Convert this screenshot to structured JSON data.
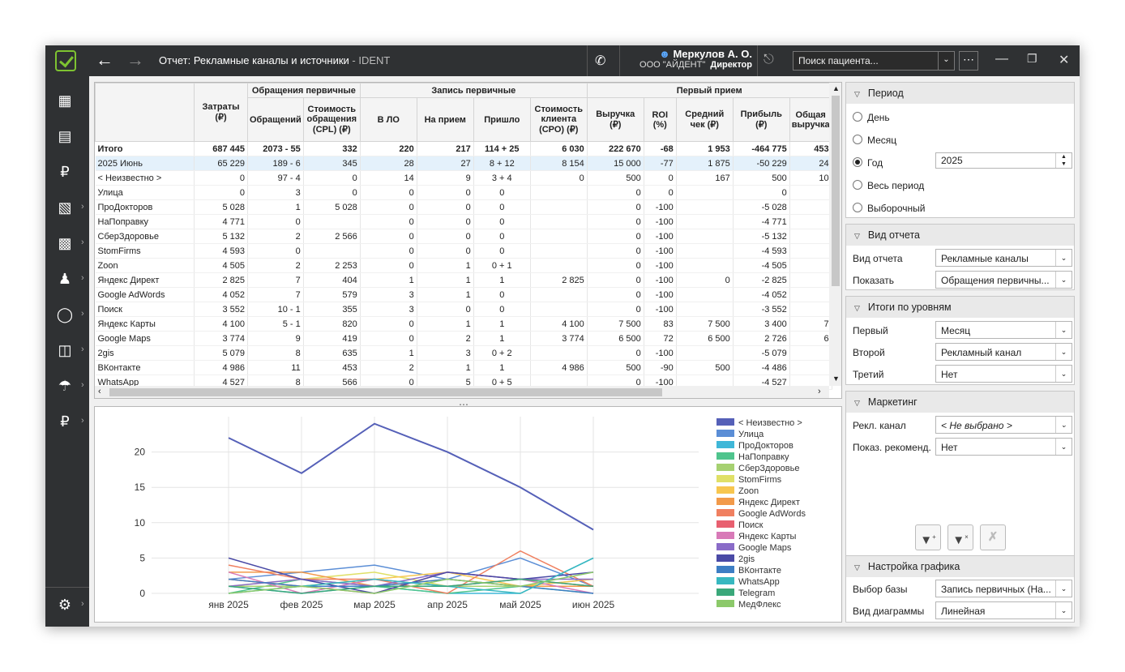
{
  "window": {
    "title": "Отчет: Рекламные каналы и источники",
    "title_suffix": " - IDENT",
    "user_name": "Меркулов А. О.",
    "org": "ООО \"АЙДЕНТ\"",
    "role": "Директор",
    "search_placeholder": "Поиск пациента...",
    "icons": [
      "app-logo-icon",
      "back-arrow-icon",
      "forward-arrow-icon",
      "phone-icon",
      "user-icon",
      "logout-icon",
      "more-icon",
      "minimize-icon",
      "restore-icon",
      "close-icon"
    ]
  },
  "sidebar": {
    "icons": [
      "calendar-icon",
      "schedule-icon",
      "ruble-icon",
      "building-icon",
      "chart-icon",
      "people-icon",
      "tooth-icon",
      "documents-icon",
      "umbrella-icon",
      "money-icon",
      "settings-icon"
    ]
  },
  "grid": {
    "groups": [
      "",
      "Обращения первичные",
      "Запись первичные",
      "Первый прием"
    ],
    "columns": [
      "",
      "Затраты (₽)",
      "Обращений",
      "Стоимость обращения (CPL) (₽)",
      "В ЛО",
      "На прием",
      "Пришло",
      "Стоимость клиента (СРО) (₽)",
      "Выручка (₽)",
      "ROI (%)",
      "Средний чек (₽)",
      "Прибыль (₽)",
      "Общая выручка"
    ],
    "rows": [
      [
        "Итого",
        "687 445",
        "2073 - 55",
        "332",
        "220",
        "217",
        "114 + 25",
        "6 030",
        "222 670",
        "-68",
        "1 953",
        "-464 775",
        "453"
      ],
      [
        "2025 Июнь",
        "65 229",
        "189 - 6",
        "345",
        "28",
        "27",
        "8 + 12",
        "8 154",
        "15 000",
        "-77",
        "1 875",
        "-50 229",
        "24"
      ],
      [
        "< Неизвестно >",
        "0",
        "97 - 4",
        "0",
        "14",
        "9",
        "3 + 4",
        "0",
        "500",
        "0",
        "167",
        "500",
        "10"
      ],
      [
        "Улица",
        "0",
        "3",
        "0",
        "0",
        "0",
        "0",
        "",
        "0",
        "0",
        "",
        "0",
        ""
      ],
      [
        "ПроДокторов",
        "5 028",
        "1",
        "5 028",
        "0",
        "0",
        "0",
        "",
        "0",
        "-100",
        "",
        "-5 028",
        ""
      ],
      [
        "НаПоправку",
        "4 771",
        "0",
        "",
        "0",
        "0",
        "0",
        "",
        "0",
        "-100",
        "",
        "-4 771",
        ""
      ],
      [
        "СберЗдоровье",
        "5 132",
        "2",
        "2 566",
        "0",
        "0",
        "0",
        "",
        "0",
        "-100",
        "",
        "-5 132",
        ""
      ],
      [
        "StomFirms",
        "4 593",
        "0",
        "",
        "0",
        "0",
        "0",
        "",
        "0",
        "-100",
        "",
        "-4 593",
        ""
      ],
      [
        "Zoon",
        "4 505",
        "2",
        "2 253",
        "0",
        "1",
        "0 + 1",
        "",
        "0",
        "-100",
        "",
        "-4 505",
        ""
      ],
      [
        "Яндекс Директ",
        "2 825",
        "7",
        "404",
        "1",
        "1",
        "1",
        "2 825",
        "0",
        "-100",
        "0",
        "-2 825",
        ""
      ],
      [
        "Google AdWords",
        "4 052",
        "7",
        "579",
        "3",
        "1",
        "0",
        "",
        "0",
        "-100",
        "",
        "-4 052",
        ""
      ],
      [
        "Поиск",
        "3 552",
        "10 - 1",
        "355",
        "3",
        "0",
        "0",
        "",
        "0",
        "-100",
        "",
        "-3 552",
        ""
      ],
      [
        "Яндекс Карты",
        "4 100",
        "5 - 1",
        "820",
        "0",
        "1",
        "1",
        "4 100",
        "7 500",
        "83",
        "7 500",
        "3 400",
        "7"
      ],
      [
        "Google Maps",
        "3 774",
        "9",
        "419",
        "0",
        "2",
        "1",
        "3 774",
        "6 500",
        "72",
        "6 500",
        "2 726",
        "6"
      ],
      [
        "2gis",
        "5 079",
        "8",
        "635",
        "1",
        "3",
        "0 + 2",
        "",
        "0",
        "-100",
        "",
        "-5 079",
        ""
      ],
      [
        "ВКонтакте",
        "4 986",
        "11",
        "453",
        "2",
        "1",
        "1",
        "4 986",
        "500",
        "-90",
        "500",
        "-4 486",
        ""
      ],
      [
        "WhatsApp",
        "4 527",
        "8",
        "566",
        "0",
        "5",
        "0 + 5",
        "",
        "0",
        "-100",
        "",
        "-4 527",
        ""
      ]
    ]
  },
  "chart_data": {
    "type": "line",
    "categories": [
      "янв 2025",
      "фев 2025",
      "мар 2025",
      "апр 2025",
      "май 2025",
      "июн 2025"
    ],
    "y_ticks": [
      "0",
      "5",
      "10",
      "15",
      "20"
    ],
    "ylim": [
      0,
      25
    ],
    "legend_position": "right",
    "series": [
      {
        "name": "< Неизвестно >",
        "color": "#5560b8",
        "values": [
          22,
          17,
          24,
          20,
          15,
          9
        ]
      },
      {
        "name": "Улица",
        "color": "#5b8ed6",
        "values": [
          2,
          3,
          4,
          2,
          5,
          1
        ]
      },
      {
        "name": "ПроДокторов",
        "color": "#3fb7d8",
        "values": [
          1,
          0,
          1,
          0,
          0,
          5
        ]
      },
      {
        "name": "НаПоправку",
        "color": "#4fc48d",
        "values": [
          0,
          2,
          1,
          0,
          1,
          0
        ]
      },
      {
        "name": "СберЗдоровье",
        "color": "#a6d171",
        "values": [
          1,
          1,
          2,
          1,
          1,
          2
        ]
      },
      {
        "name": "StomFirms",
        "color": "#e0e067",
        "values": [
          1,
          2,
          3,
          1,
          2,
          1
        ]
      },
      {
        "name": "Zoon",
        "color": "#f7c64f",
        "values": [
          2,
          1,
          2,
          3,
          1,
          2
        ]
      },
      {
        "name": "Яндекс Директ",
        "color": "#f29a4a",
        "values": [
          3,
          3,
          1,
          2,
          1,
          1
        ]
      },
      {
        "name": "Google AdWords",
        "color": "#f08060",
        "values": [
          4,
          2,
          2,
          0,
          6,
          1
        ]
      },
      {
        "name": "Поиск",
        "color": "#e86070",
        "values": [
          2,
          1,
          0,
          3,
          2,
          1
        ]
      },
      {
        "name": "Яндекс Карты",
        "color": "#d87ab8",
        "values": [
          3,
          0,
          2,
          1,
          2,
          0
        ]
      },
      {
        "name": "Google Maps",
        "color": "#8a6cc8",
        "values": [
          1,
          2,
          1,
          3,
          2,
          2
        ]
      },
      {
        "name": "2gis",
        "color": "#4a4aa6",
        "values": [
          5,
          2,
          0,
          3,
          2,
          3
        ]
      },
      {
        "name": "ВКонтакте",
        "color": "#3d7ec4",
        "values": [
          2,
          1,
          1,
          2,
          1,
          0
        ]
      },
      {
        "name": "WhatsApp",
        "color": "#37b8c0",
        "values": [
          0,
          1,
          2,
          1,
          0,
          5
        ]
      },
      {
        "name": "Telegram",
        "color": "#3aa87a",
        "values": [
          1,
          0,
          1,
          1,
          2,
          1
        ]
      },
      {
        "name": "МедФлекс",
        "color": "#8cc96a",
        "values": [
          0,
          1,
          0,
          2,
          1,
          3
        ]
      }
    ]
  },
  "right": {
    "period": {
      "title": "Период",
      "options": [
        "День",
        "Месяц",
        "Год",
        "Весь период",
        "Выборочный"
      ],
      "selected": "Год",
      "year": "2025"
    },
    "view": {
      "title": "Вид отчета",
      "view_label": "Вид отчета",
      "view_value": "Рекламные каналы",
      "show_label": "Показать",
      "show_value": "Обращения первичны..."
    },
    "levels": {
      "title": "Итоги по уровням",
      "first_label": "Первый",
      "first_value": "Месяц",
      "second_label": "Второй",
      "second_value": "Рекламный канал",
      "third_label": "Третий",
      "third_value": "Нет"
    },
    "marketing": {
      "title": "Маркетинг",
      "channel_label": "Рекл. канал",
      "channel_value": "< Не выбрано >",
      "recommend_label": "Показ. рекоменд.",
      "recommend_value": "Нет"
    },
    "chart_settings": {
      "title": "Настройка графика",
      "base_label": "Выбор базы",
      "base_value": "Запись первичных (На...",
      "type_label": "Вид диаграммы",
      "type_value": "Линейная"
    }
  }
}
